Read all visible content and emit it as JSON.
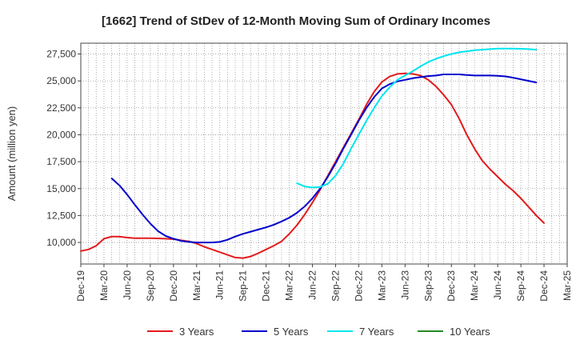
{
  "chart_data": {
    "type": "line",
    "title": "[1662]  Trend of StDev of 12-Month Moving Sum of Ordinary Incomes",
    "xlabel": "",
    "ylabel": "Amount (million yen)",
    "ylim": [
      8000,
      28500
    ],
    "y_ticks": [
      10000,
      12500,
      15000,
      17500,
      20000,
      22500,
      25000,
      27500
    ],
    "y_tick_labels": [
      "10,000",
      "12,500",
      "15,000",
      "17,500",
      "20,000",
      "22,500",
      "25,000",
      "27,500"
    ],
    "x_tick_labels": [
      "Dec-19",
      "Mar-20",
      "Jun-20",
      "Sep-20",
      "Dec-20",
      "Mar-21",
      "Jun-21",
      "Sep-21",
      "Dec-21",
      "Mar-22",
      "Jun-22",
      "Sep-22",
      "Dec-22",
      "Mar-23",
      "Jun-23",
      "Sep-23",
      "Dec-23",
      "Mar-24",
      "Jun-24",
      "Sep-24",
      "Dec-24",
      "Mar-25"
    ],
    "grid": true,
    "series": [
      {
        "name": "3 Years",
        "color": "#e31a1c",
        "values": [
          9200,
          9350,
          9700,
          10350,
          10550,
          10550,
          10450,
          10400,
          10400,
          10400,
          10380,
          10350,
          10300,
          10200,
          10100,
          9900,
          9600,
          9350,
          9100,
          8850,
          8600,
          8550,
          8700,
          9000,
          9350,
          9700,
          10100,
          10800,
          11600,
          12600,
          13700,
          14900,
          16200,
          17500,
          18800,
          20100,
          21400,
          22800,
          24000,
          24900,
          25400,
          25650,
          25700,
          25650,
          25500,
          25100,
          24500,
          23700,
          22800,
          21500,
          20000,
          18700,
          17600,
          16800,
          16100,
          15400,
          14800,
          14100,
          13300,
          12500,
          11800
        ]
      },
      {
        "name": "5 Years",
        "color": "#0000cc",
        "values": [
          null,
          null,
          null,
          null,
          15950,
          15300,
          14450,
          13500,
          12600,
          11750,
          11050,
          10600,
          10350,
          10150,
          10050,
          10000,
          10000,
          10000,
          10050,
          10250,
          10550,
          10800,
          11000,
          11200,
          11400,
          11650,
          11950,
          12300,
          12750,
          13350,
          14100,
          15000,
          16100,
          17350,
          18700,
          20000,
          21300,
          22500,
          23500,
          24300,
          24700,
          24950,
          25100,
          25250,
          25350,
          25450,
          25500,
          25600,
          25600,
          25600,
          25550,
          25500,
          25500,
          25500,
          25480,
          25420,
          25300,
          25150,
          25000,
          24850
        ]
      },
      {
        "name": "7 Years",
        "color": "#00e5ee",
        "values": [
          null,
          null,
          null,
          null,
          null,
          null,
          null,
          null,
          null,
          null,
          null,
          null,
          null,
          null,
          null,
          null,
          null,
          null,
          null,
          null,
          null,
          null,
          null,
          null,
          null,
          null,
          null,
          null,
          15500,
          15200,
          15100,
          15150,
          15450,
          16200,
          17300,
          18700,
          20000,
          21300,
          22500,
          23600,
          24400,
          25100,
          25500,
          25900,
          26350,
          26750,
          27050,
          27300,
          27500,
          27650,
          27750,
          27850,
          27900,
          27950,
          28000,
          28000,
          28000,
          27980,
          27950,
          27900
        ]
      },
      {
        "name": "10 Years",
        "color": "#228b22",
        "values": []
      }
    ]
  }
}
